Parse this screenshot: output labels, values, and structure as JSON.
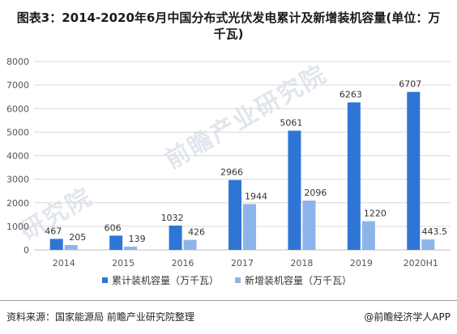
{
  "title": "图表3：2014-2020年6月中国分布式光伏发电累计及新增装机容量(单位：万千瓦)",
  "footer": {
    "source": "资料来源：国家能源局 前瞻产业研究院整理",
    "brand": "@前瞻经济学人APP"
  },
  "watermark": {
    "text_large": "前瞻产业研究院",
    "text_small": "研究院"
  },
  "colors": {
    "cumulative": "#2e75d6",
    "new": "#8db4ea",
    "grid": "#d9d9d9",
    "axis_text": "#555555"
  },
  "chart_data": {
    "type": "bar",
    "categories": [
      "2014",
      "2015",
      "2016",
      "2017",
      "2018",
      "2019",
      "2020H1"
    ],
    "series": [
      {
        "name": "累计装机容量（万千瓦）",
        "values": [
          467,
          606,
          1032,
          2966,
          5061,
          6263,
          6707
        ],
        "labels": [
          "467",
          "606",
          "1032",
          "2966",
          "5061",
          "6263",
          "6707"
        ]
      },
      {
        "name": "新增装机容量（万千瓦）",
        "values": [
          205,
          139,
          426,
          1944,
          2096,
          1220,
          443.5
        ],
        "labels": [
          "205",
          "139",
          "426",
          "1944",
          "2096",
          "1220",
          "443.5"
        ]
      }
    ],
    "ylim": [
      0,
      8000
    ],
    "yticks": [
      0,
      1000,
      2000,
      3000,
      4000,
      5000,
      6000,
      7000,
      8000
    ],
    "grid": true,
    "legend": "bottom"
  }
}
